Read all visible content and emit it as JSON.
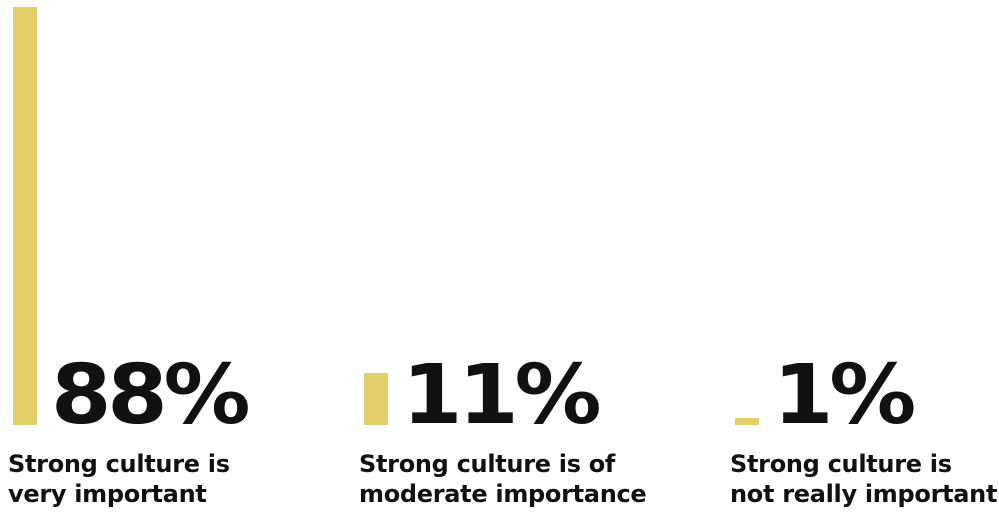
{
  "chart_data": {
    "type": "bar",
    "bar_color": "#e2cf6a",
    "text_color": "#111111",
    "ylim": [
      0,
      88
    ],
    "grid": false,
    "legend": "none",
    "categories": [
      {
        "label_lines": [
          "Strong culture is",
          "very important"
        ],
        "value": 88,
        "value_label": "88%"
      },
      {
        "label_lines": [
          "Strong culture is of",
          "moderate importance"
        ],
        "value": 11,
        "value_label": "11%"
      },
      {
        "label_lines": [
          "Strong culture is",
          "not really important"
        ],
        "value": 1,
        "value_label": "1%"
      }
    ]
  }
}
